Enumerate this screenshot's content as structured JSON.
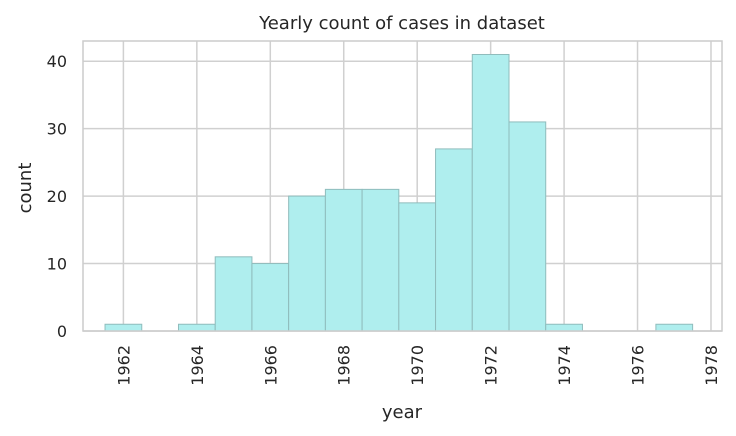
{
  "chart_data": {
    "type": "bar",
    "title": "Yearly count of cases in dataset",
    "xlabel": "year",
    "ylabel": "count",
    "bin_edges": [
      1961.5,
      1962.5,
      1963.5,
      1964.5,
      1965.5,
      1966.5,
      1967.5,
      1968.5,
      1969.5,
      1970.5,
      1971.5,
      1972.5,
      1973.5,
      1974.5,
      1975.5,
      1976.5,
      1977.5
    ],
    "values": [
      1,
      0,
      1,
      11,
      10,
      20,
      21,
      21,
      19,
      27,
      41,
      31,
      1,
      0,
      0,
      1
    ],
    "xlim": [
      1960.9,
      1978.3
    ],
    "ylim": [
      0,
      43
    ],
    "xticks": [
      1962,
      1964,
      1966,
      1968,
      1970,
      1972,
      1974,
      1976,
      1978
    ],
    "xtick_labels": [
      "1962",
      "1964",
      "1966",
      "1968",
      "1970",
      "1972",
      "1974",
      "1976",
      "1978"
    ],
    "yticks": [
      0,
      10,
      20,
      30,
      40
    ],
    "ytick_labels": [
      "0",
      "10",
      "20",
      "30",
      "40"
    ],
    "grid": true,
    "colors": {
      "bar_fill": "#afeeee",
      "bar_edge": "#8fbcbc",
      "grid": "#d0d0d0",
      "spine": "#cccccc"
    }
  }
}
